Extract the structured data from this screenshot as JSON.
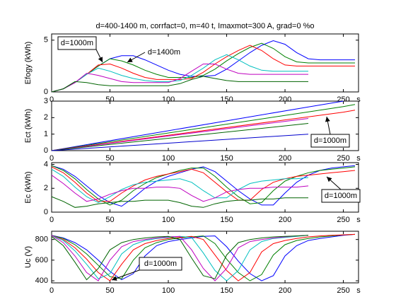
{
  "chart_data": [
    {
      "type": "line",
      "title": "d=400-1400 m, corrfact=0, m=40 t, Imaxmot=300 A, grad=0 %o",
      "y_label": "Efogy (kWh)",
      "x": [
        0,
        10,
        20,
        30,
        40,
        50,
        60,
        70,
        80,
        90,
        100,
        110,
        120,
        130,
        140,
        150,
        160,
        170,
        180,
        190,
        200,
        210,
        220,
        230,
        240,
        250,
        260
      ],
      "xlim": [
        0,
        263
      ],
      "xticks": [
        0,
        50,
        100,
        150,
        200,
        250,
        {
          "value": 263,
          "label": "s"
        }
      ],
      "ylim": [
        0,
        5.6
      ],
      "yticks": [
        0,
        5
      ],
      "annotations": [
        "d=1000m",
        "d=1400m"
      ],
      "series": [
        {
          "color": "#0000ff",
          "values": [
            0,
            0.3,
            0.9,
            1.7,
            2.5,
            3.2,
            3.5,
            3.5,
            3.1,
            2.6,
            2.1,
            1.7,
            1.5,
            1.5,
            1.6,
            2.2,
            3.0,
            3.8,
            4.5,
            4.95,
            4.6,
            3.8,
            3.2,
            3.1,
            3.1,
            3.1,
            3.1
          ]
        },
        {
          "color": "#008000",
          "values": [
            0,
            0.3,
            0.9,
            1.7,
            2.5,
            3.2,
            3.0,
            2.6,
            2.1,
            1.7,
            1.4,
            1.4,
            1.4,
            1.6,
            2.2,
            3.0,
            3.7,
            4.3,
            4.7,
            4.2,
            3.4,
            2.9,
            2.8,
            2.8,
            2.8,
            2.8,
            2.8
          ]
        },
        {
          "color": "#ff0000",
          "values": [
            0,
            0.3,
            0.9,
            1.7,
            2.6,
            2.7,
            2.3,
            1.8,
            1.4,
            1.2,
            1.2,
            1.2,
            1.3,
            1.9,
            2.7,
            3.4,
            4.0,
            4.5,
            4.0,
            3.2,
            2.6,
            2.5,
            2.5,
            2.5,
            2.5,
            2.5,
            2.5
          ]
        },
        {
          "color": "#00bfbf",
          "values": [
            0,
            0.3,
            0.9,
            1.7,
            2.3,
            2.0,
            1.6,
            1.3,
            1.1,
            1.0,
            1.0,
            1.1,
            1.6,
            2.3,
            3.1,
            3.6,
            3.1,
            2.5,
            2.1,
            2.0,
            2.0,
            2.0,
            2.0,
            null,
            null,
            null,
            null
          ]
        },
        {
          "color": "#bf00bf",
          "values": [
            0,
            0.3,
            0.9,
            1.8,
            1.6,
            1.3,
            1.0,
            0.9,
            0.9,
            0.9,
            0.9,
            1.3,
            2.0,
            2.7,
            2.7,
            2.2,
            1.8,
            1.7,
            1.7,
            1.7,
            1.7,
            1.7,
            1.7,
            null,
            null,
            null,
            null
          ]
        },
        {
          "color": "#006400",
          "values": [
            0,
            0.3,
            1.0,
            0.9,
            0.7,
            0.6,
            0.6,
            0.6,
            0.6,
            0.6,
            0.6,
            0.8,
            1.2,
            1.5,
            1.3,
            1.1,
            1.0,
            1.0,
            1.0,
            1.0,
            1.0,
            1.0,
            1.0,
            null,
            null,
            null,
            null
          ]
        }
      ]
    },
    {
      "type": "line",
      "y_label": "Ect (kWh)",
      "x": [
        0,
        220,
        250,
        260
      ],
      "xlim": [
        0,
        263
      ],
      "xticks": [
        0,
        50,
        100,
        150,
        200,
        250,
        {
          "value": 263,
          "label": "s"
        }
      ],
      "ylim": [
        0,
        3
      ],
      "yticks": [
        0,
        1,
        2,
        3
      ],
      "annotations": [
        "d=1000m"
      ],
      "series": [
        {
          "color": "#0000ff",
          "values": [
            0,
            2.65,
            3.0,
            null
          ]
        },
        {
          "color": "#008000",
          "values": [
            0,
            2.35,
            2.67,
            2.8
          ]
        },
        {
          "color": "#ff0000",
          "values": [
            0,
            2.05,
            2.33,
            2.45
          ]
        },
        {
          "color": "#bf00bf",
          "values": [
            0,
            1.95,
            null,
            null
          ]
        },
        {
          "color": "#006400",
          "values": [
            0,
            1.65,
            null,
            null
          ]
        },
        {
          "color": "#0000cd",
          "values": [
            0,
            1.0,
            null,
            null
          ]
        }
      ]
    },
    {
      "type": "line",
      "y_label": "Ec (kWh)",
      "x": [
        0,
        10,
        20,
        30,
        40,
        50,
        60,
        70,
        80,
        90,
        100,
        110,
        120,
        130,
        140,
        150,
        160,
        170,
        180,
        190,
        200,
        210,
        220,
        230,
        240,
        250,
        260
      ],
      "xlim": [
        0,
        263
      ],
      "xticks": [
        0,
        50,
        100,
        150,
        200,
        250,
        {
          "value": 263,
          "label": "s"
        }
      ],
      "ylim": [
        0,
        4.15
      ],
      "yticks": [
        0,
        2,
        4
      ],
      "annotations": [
        "d=1000m"
      ],
      "series": [
        {
          "color": "#0000ff",
          "values": [
            3.9,
            3.6,
            3.0,
            2.2,
            1.4,
            0.8,
            0.5,
            1.2,
            2.0,
            2.6,
            3.0,
            3.3,
            3.6,
            3.8,
            3.4,
            2.6,
            1.8,
            1.1,
            0.6,
            0.6,
            1.6,
            2.5,
            3.1,
            3.5,
            3.7,
            3.8,
            3.9
          ]
        },
        {
          "color": "#008000",
          "values": [
            3.9,
            3.5,
            2.8,
            1.9,
            1.1,
            0.6,
            1.0,
            1.8,
            2.4,
            2.9,
            3.2,
            3.5,
            3.7,
            3.7,
            3.0,
            2.1,
            1.3,
            0.7,
            0.8,
            1.8,
            2.6,
            3.0,
            3.3,
            3.5,
            3.6,
            3.7,
            3.8
          ]
        },
        {
          "color": "#ff0000",
          "values": [
            3.8,
            3.3,
            2.5,
            1.6,
            0.9,
            0.9,
            1.6,
            2.2,
            2.7,
            3.0,
            3.2,
            3.4,
            3.6,
            3.3,
            2.5,
            1.7,
            1.0,
            1.0,
            1.9,
            2.5,
            2.8,
            3.0,
            3.1,
            3.2,
            3.3,
            3.4,
            3.5
          ]
        },
        {
          "color": "#00bfbf",
          "values": [
            3.6,
            3.0,
            2.1,
            1.3,
            0.8,
            1.3,
            1.9,
            2.3,
            2.5,
            2.6,
            2.7,
            2.8,
            2.5,
            1.8,
            1.2,
            1.2,
            1.9,
            2.4,
            2.6,
            2.7,
            2.8,
            2.8,
            2.9,
            null,
            null,
            null,
            null
          ]
        },
        {
          "color": "#bf00bf",
          "values": [
            3.1,
            2.4,
            1.6,
            0.9,
            1.1,
            1.5,
            1.8,
            2.0,
            2.0,
            2.1,
            2.1,
            2.0,
            1.4,
            0.9,
            1.2,
            1.7,
            1.9,
            2.0,
            2.0,
            2.1,
            2.1,
            2.1,
            2.2,
            null,
            null,
            null,
            null
          ]
        },
        {
          "color": "#006400",
          "values": [
            1.3,
            0.9,
            0.4,
            0.5,
            0.7,
            0.8,
            0.9,
            0.9,
            1.0,
            1.0,
            1.0,
            0.8,
            0.5,
            0.4,
            0.7,
            0.9,
            1.0,
            1.0,
            1.1,
            1.1,
            1.2,
            1.2,
            1.2,
            null,
            null,
            null,
            null
          ]
        }
      ]
    },
    {
      "type": "line",
      "y_label": "Uc (V)",
      "x": [
        0,
        10,
        20,
        30,
        40,
        50,
        60,
        70,
        80,
        90,
        100,
        110,
        120,
        130,
        140,
        150,
        160,
        170,
        180,
        190,
        200,
        210,
        220,
        230,
        240,
        250,
        260
      ],
      "xlim": [
        0,
        263
      ],
      "xticks": [
        0,
        50,
        100,
        150,
        200,
        250,
        {
          "value": 263,
          "label": "s"
        }
      ],
      "ylim": [
        380,
        880
      ],
      "yticks": [
        400,
        600,
        800
      ],
      "annotations": [
        "d=1000m"
      ],
      "series": [
        {
          "color": "#0000ff",
          "values": [
            840,
            815,
            770,
            700,
            600,
            490,
            410,
            470,
            640,
            740,
            780,
            800,
            815,
            830,
            835,
            730,
            590,
            470,
            400,
            450,
            640,
            740,
            790,
            810,
            825,
            840,
            850
          ]
        },
        {
          "color": "#008000",
          "values": [
            840,
            810,
            750,
            660,
            550,
            440,
            420,
            600,
            720,
            770,
            800,
            815,
            825,
            835,
            760,
            610,
            480,
            400,
            460,
            650,
            750,
            790,
            810,
            825,
            835,
            845,
            850
          ]
        },
        {
          "color": "#ff0000",
          "values": [
            840,
            800,
            720,
            610,
            480,
            400,
            560,
            700,
            760,
            790,
            810,
            820,
            830,
            800,
            650,
            500,
            400,
            480,
            680,
            760,
            790,
            810,
            825,
            835,
            840,
            845,
            850
          ]
        },
        {
          "color": "#00bfbf",
          "values": [
            840,
            790,
            690,
            560,
            420,
            470,
            660,
            750,
            790,
            810,
            820,
            830,
            820,
            670,
            500,
            400,
            500,
            700,
            780,
            810,
            820,
            830,
            840,
            null,
            null,
            null,
            null
          ]
        },
        {
          "color": "#bf00bf",
          "values": [
            840,
            770,
            640,
            480,
            400,
            600,
            730,
            780,
            800,
            815,
            825,
            830,
            700,
            520,
            400,
            520,
            720,
            780,
            800,
            815,
            825,
            835,
            840,
            null,
            null,
            null,
            null
          ]
        },
        {
          "color": "#006400",
          "values": [
            830,
            740,
            580,
            410,
            520,
            700,
            770,
            800,
            815,
            825,
            830,
            800,
            620,
            450,
            420,
            650,
            770,
            800,
            815,
            825,
            830,
            835,
            840,
            null,
            null,
            null,
            null
          ]
        }
      ]
    }
  ]
}
